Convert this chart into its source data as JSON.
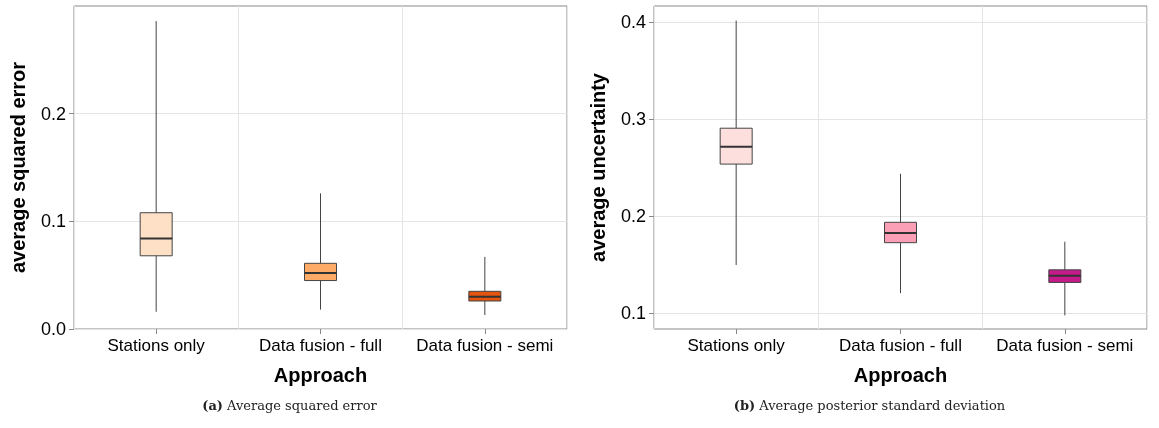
{
  "chart_data": [
    {
      "type": "box",
      "xlabel": "Approach",
      "ylabel": "average squared error",
      "categories": [
        "Stations only",
        "Data fusion - full",
        "Data fusion - semi"
      ],
      "colors": [
        "#fde0c5",
        "#fdab67",
        "#e6550d"
      ],
      "boxes": [
        {
          "low": 0.016,
          "q1": 0.068,
          "median": 0.084,
          "q3": 0.108,
          "high": 0.286
        },
        {
          "low": 0.018,
          "q1": 0.045,
          "median": 0.052,
          "q3": 0.061,
          "high": 0.126
        },
        {
          "low": 0.013,
          "q1": 0.026,
          "median": 0.03,
          "q3": 0.035,
          "high": 0.067
        }
      ],
      "ylim": [
        0,
        0.3
      ],
      "yticks": [
        {
          "value": 0,
          "label": "0.0"
        },
        0.1,
        0.2
      ],
      "grid": true,
      "annotations": [
        "(a) Average squared error"
      ]
    },
    {
      "type": "box",
      "xlabel": "Approach",
      "ylabel": "average uncertainty",
      "categories": [
        "Stations only",
        "Data fusion - full",
        "Data fusion - semi"
      ],
      "colors": [
        "#fde0dd",
        "#fa9fb5",
        "#c51b8a"
      ],
      "boxes": [
        {
          "low": 0.15,
          "q1": 0.254,
          "median": 0.272,
          "q3": 0.291,
          "high": 0.402
        },
        {
          "low": 0.121,
          "q1": 0.173,
          "median": 0.183,
          "q3": 0.194,
          "high": 0.244
        },
        {
          "low": 0.098,
          "q1": 0.132,
          "median": 0.139,
          "q3": 0.145,
          "high": 0.174
        }
      ],
      "ylim": [
        0.084,
        0.417
      ],
      "yticks": [
        0.1,
        0.2,
        0.3,
        0.4
      ],
      "grid": true,
      "annotations": [
        "(b) Average posterior standard deviation"
      ]
    }
  ]
}
